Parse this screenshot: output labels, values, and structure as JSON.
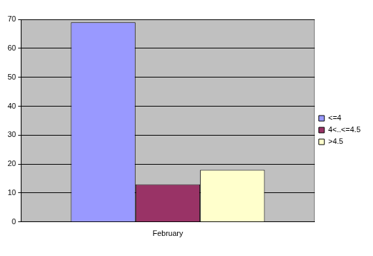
{
  "chart_data": {
    "type": "bar",
    "categories": [
      "February"
    ],
    "series": [
      {
        "name": "<=4",
        "color": "#9999ff",
        "values": [
          69
        ]
      },
      {
        "name": "4<..<=4.5",
        "color": "#993366",
        "values": [
          13
        ]
      },
      {
        "name": ">4.5",
        "color": "#ffffcc",
        "values": [
          18
        ]
      }
    ],
    "ylim": [
      0,
      70
    ],
    "yticks": [
      0,
      10,
      20,
      30,
      40,
      50,
      60,
      70
    ],
    "grid": true,
    "legend": "right"
  }
}
